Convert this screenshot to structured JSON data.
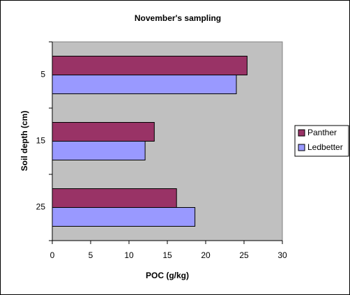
{
  "chart_data": {
    "type": "hbar",
    "title": "November's sampling",
    "x_label": "POC (g/kg)",
    "y_label": "Soil depth (cm)",
    "categories": [
      "5",
      "15",
      "25"
    ],
    "series": [
      {
        "name": "Panther",
        "color": "#993366",
        "values": [
          25.4,
          13.3,
          16.2
        ]
      },
      {
        "name": "Ledbetter",
        "color": "#9999ff",
        "values": [
          24.0,
          12.1,
          18.6
        ]
      }
    ],
    "xlim": [
      0,
      30
    ],
    "xticks": [
      0,
      5,
      10,
      15,
      20,
      25,
      30
    ],
    "legend": "right",
    "plot_background": "#c0c0c0"
  }
}
